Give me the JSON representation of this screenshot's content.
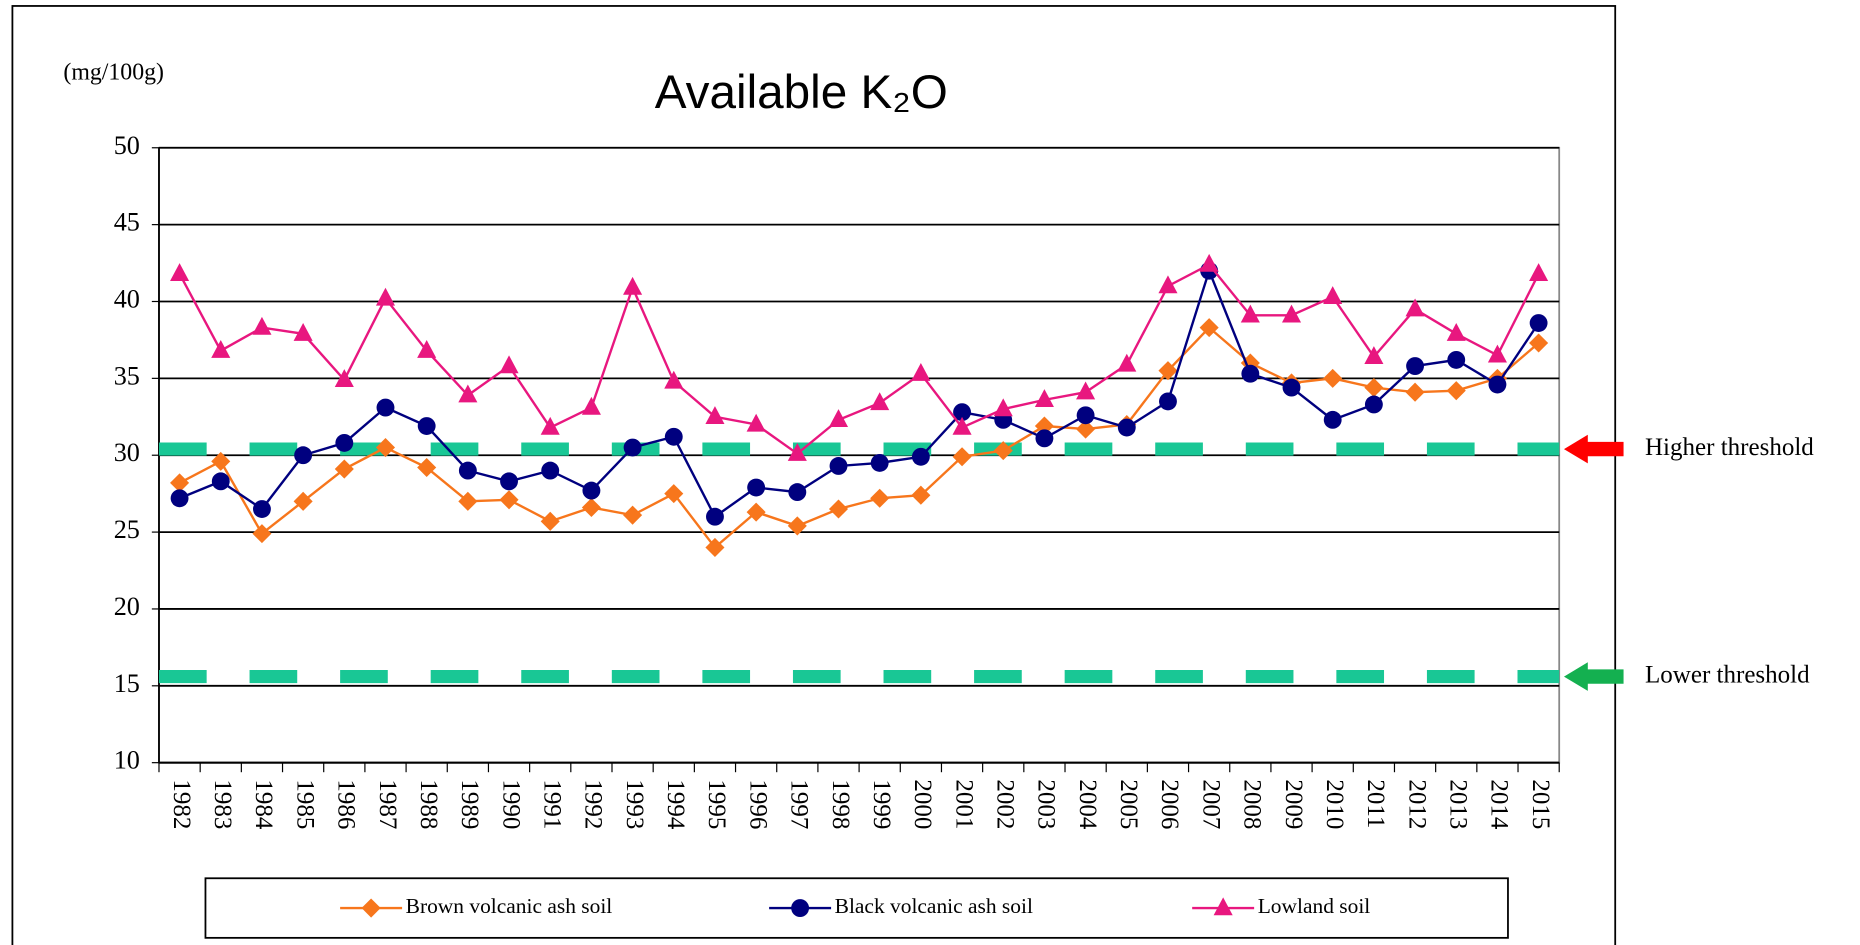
{
  "chart_data": {
    "type": "line",
    "title": "Available K₂O",
    "y_unit": "(mg/100g)",
    "categories": [
      "1982",
      "1983",
      "1984",
      "1985",
      "1986",
      "1987",
      "1988",
      "1989",
      "1990",
      "1991",
      "1992",
      "1993",
      "1994",
      "1995",
      "1996",
      "1997",
      "1998",
      "1999",
      "2000",
      "2001",
      "2002",
      "2003",
      "2004",
      "2005",
      "2006",
      "2007",
      "2008",
      "2009",
      "2010",
      "2011",
      "2012",
      "2013",
      "2014",
      "2015"
    ],
    "series": [
      {
        "name": "Brown volcanic ash soil",
        "color": "#f7761c",
        "marker": "diamond",
        "values": [
          28.2,
          29.6,
          24.9,
          27.0,
          29.1,
          30.5,
          29.2,
          27.0,
          27.1,
          25.7,
          26.6,
          26.1,
          27.5,
          24.0,
          26.3,
          25.4,
          26.5,
          27.2,
          27.4,
          29.9,
          30.3,
          31.9,
          31.7,
          32.0,
          35.5,
          38.3,
          36.0,
          34.7,
          35.0,
          34.4,
          34.1,
          34.2,
          35.0,
          37.3
        ]
      },
      {
        "name": "Black volcanic ash soil",
        "color": "#00007f",
        "marker": "circle",
        "values": [
          27.2,
          28.3,
          26.5,
          30.0,
          30.8,
          33.1,
          31.9,
          29.0,
          28.3,
          29.0,
          27.7,
          30.5,
          31.2,
          26.0,
          27.9,
          27.6,
          29.3,
          29.5,
          29.9,
          32.8,
          32.3,
          31.1,
          32.6,
          31.8,
          33.5,
          42.0,
          35.3,
          34.4,
          32.3,
          33.3,
          35.8,
          36.2,
          34.6,
          38.6
        ]
      },
      {
        "name": "Lowland soil",
        "color": "#e8177f",
        "marker": "triangle",
        "values": [
          41.8,
          36.8,
          38.3,
          37.9,
          34.9,
          40.2,
          36.8,
          33.9,
          35.8,
          31.8,
          33.1,
          40.9,
          34.8,
          32.5,
          32.0,
          30.1,
          32.3,
          33.4,
          35.3,
          31.8,
          33.0,
          33.6,
          34.1,
          35.9,
          41.0,
          42.4,
          39.1,
          39.1,
          40.3,
          36.4,
          39.5,
          37.9,
          36.5,
          41.8
        ]
      }
    ],
    "ylim": [
      10,
      50
    ],
    "yticks": [
      10,
      15,
      20,
      25,
      30,
      35,
      40,
      45,
      50
    ],
    "grid": true,
    "legend": "bottom",
    "thresholds": [
      {
        "label": "Higher threshold",
        "value": 30.4,
        "color": "#19c795",
        "arrow_color": "#ff0000",
        "label_color": "#ff0000"
      },
      {
        "label": "Lower threshold",
        "value": 15.6,
        "color": "#19c795",
        "arrow_color": "#14b050",
        "label_color": "#3333cc"
      }
    ]
  }
}
